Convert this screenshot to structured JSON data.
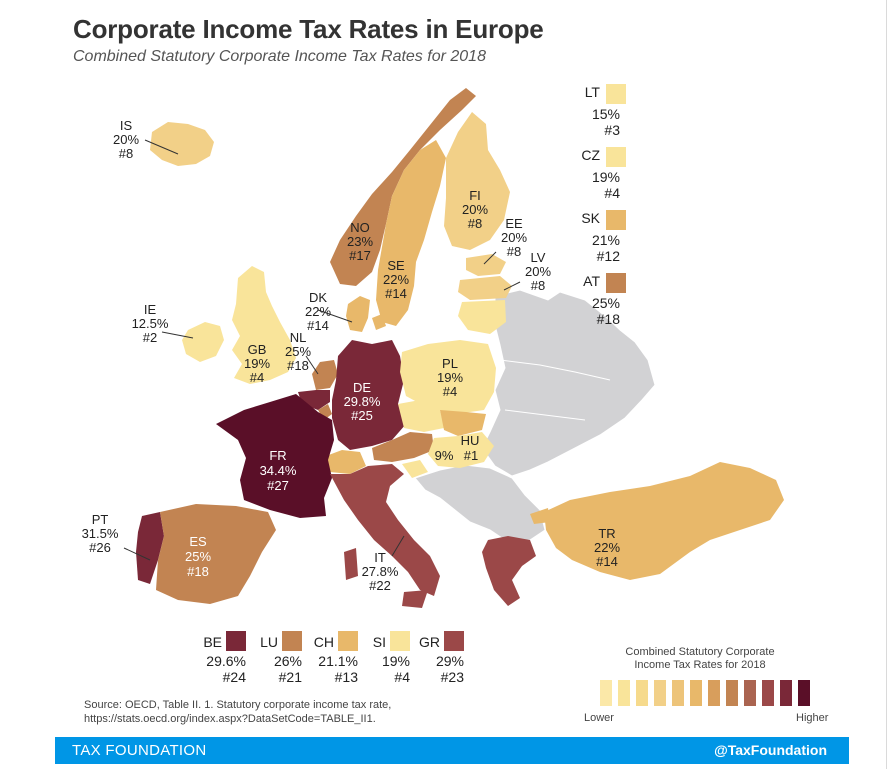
{
  "title": "Corporate Income Tax Rates in Europe",
  "subtitle": "Combined Statutory Corporate Income Tax Rates for 2018",
  "colors": {
    "lightest": "#f9e49a",
    "light": "#f2d088",
    "mid_light": "#e8b86a",
    "mid": "#c28452",
    "mid_dark": "#9b4848",
    "dark": "#7a2838",
    "darkest": "#5a0f28",
    "no_data": "#d2d2d4",
    "footer": "#0096e6"
  },
  "countries": [
    {
      "code": "IS",
      "rate": "20%",
      "rank": "#8"
    },
    {
      "code": "NO",
      "rate": "23%",
      "rank": "#17"
    },
    {
      "code": "SE",
      "rate": "22%",
      "rank": "#14"
    },
    {
      "code": "FI",
      "rate": "20%",
      "rank": "#8"
    },
    {
      "code": "EE",
      "rate": "20%",
      "rank": "#8"
    },
    {
      "code": "LV",
      "rate": "20%",
      "rank": "#8"
    },
    {
      "code": "IE",
      "rate": "12.5%",
      "rank": "#2"
    },
    {
      "code": "GB",
      "rate": "19%",
      "rank": "#4"
    },
    {
      "code": "DK",
      "rate": "22%",
      "rank": "#14"
    },
    {
      "code": "NL",
      "rate": "25%",
      "rank": "#18"
    },
    {
      "code": "DE",
      "rate": "29.8%",
      "rank": "#25"
    },
    {
      "code": "PL",
      "rate": "19%",
      "rank": "#4"
    },
    {
      "code": "FR",
      "rate": "34.4%",
      "rank": "#27"
    },
    {
      "code": "HU",
      "rate": "9%",
      "rank": "#1"
    },
    {
      "code": "PT",
      "rate": "31.5%",
      "rank": "#26"
    },
    {
      "code": "ES",
      "rate": "25%",
      "rank": "#18"
    },
    {
      "code": "IT",
      "rate": "27.8%",
      "rank": "#22"
    },
    {
      "code": "TR",
      "rate": "22%",
      "rank": "#14"
    }
  ],
  "side_legend": [
    {
      "code": "LT",
      "rate": "15%",
      "rank": "#3",
      "color": "#f9e49a"
    },
    {
      "code": "CZ",
      "rate": "19%",
      "rank": "#4",
      "color": "#f9e49a"
    },
    {
      "code": "SK",
      "rate": "21%",
      "rank": "#12",
      "color": "#e8b86a"
    },
    {
      "code": "AT",
      "rate": "25%",
      "rank": "#18",
      "color": "#c28452"
    }
  ],
  "bottom_legend": [
    {
      "code": "BE",
      "rate": "29.6%",
      "rank": "#24",
      "color": "#7a2838"
    },
    {
      "code": "LU",
      "rate": "26%",
      "rank": "#21",
      "color": "#c28452"
    },
    {
      "code": "CH",
      "rate": "21.1%",
      "rank": "#13",
      "color": "#e8b86a"
    },
    {
      "code": "SI",
      "rate": "19%",
      "rank": "#4",
      "color": "#f9e49a"
    },
    {
      "code": "GR",
      "rate": "29%",
      "rank": "#23",
      "color": "#9b4848"
    }
  ],
  "legend": {
    "title_line1": "Combined Statutory Corporate",
    "title_line2": "Income Tax Rates for 2018",
    "low": "Lower",
    "high": "Higher",
    "scale_colors": [
      "#fbe8a8",
      "#f9e49a",
      "#f6da8c",
      "#f2d088",
      "#edc47a",
      "#e8b86a",
      "#d89e5c",
      "#c28452",
      "#aa6450",
      "#9b4848",
      "#7a2838",
      "#5a0f28"
    ]
  },
  "source": {
    "line1": "Source:  OECD, Table II. 1. Statutory corporate income tax rate,",
    "line2": "https://stats.oecd.org/index.aspx?DataSetCode=TABLE_II1."
  },
  "footer": {
    "brand": "TAX FOUNDATION",
    "handle": "@TaxFoundation"
  }
}
